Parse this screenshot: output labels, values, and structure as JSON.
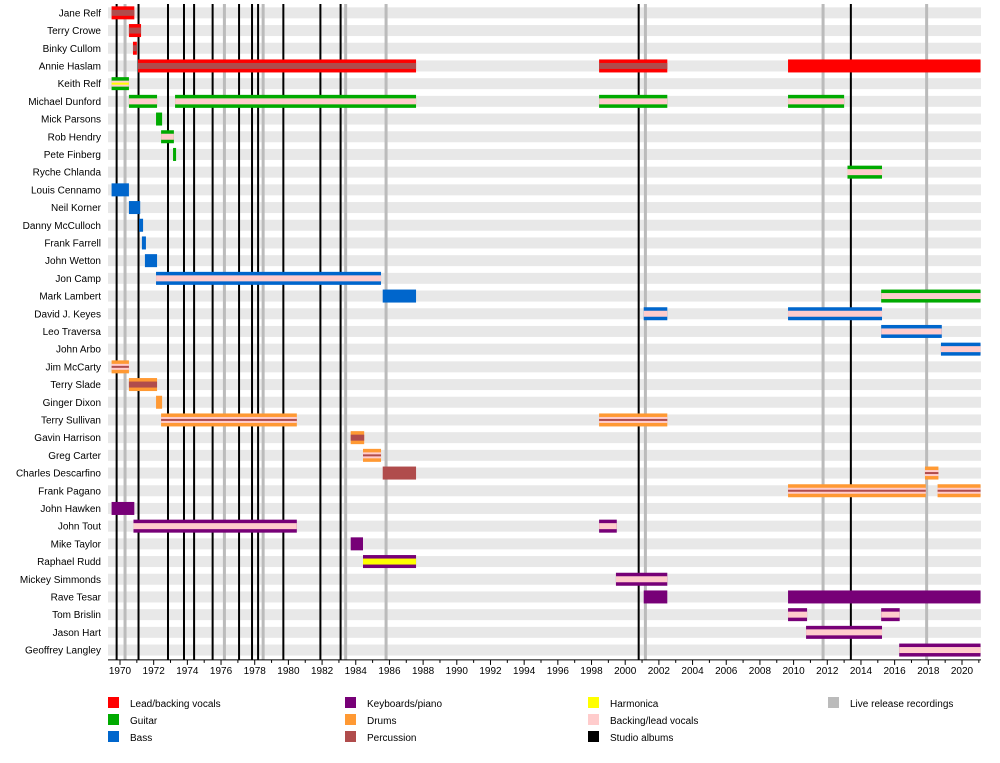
{
  "chart_data": {
    "type": "timeline",
    "xlim": [
      1969.3,
      2021.1
    ],
    "x_ticks": [
      1970,
      1972,
      1974,
      1976,
      1978,
      1980,
      1982,
      1984,
      1986,
      1988,
      1990,
      1992,
      1994,
      1996,
      1998,
      2000,
      2002,
      2004,
      2006,
      2008,
      2010,
      2012,
      2014,
      2016,
      2018,
      2020
    ],
    "colors": {
      "vocals": "#ff0000",
      "guitar": "#00aa00",
      "bass": "#0066cc",
      "keyboards": "#770077",
      "drums": "#ff9933",
      "percussion": "#b04c4c",
      "harmonica": "#ffff00",
      "backing": "#ffcccc",
      "studio": "#000000",
      "live": "#bbbbbb"
    },
    "legend": [
      {
        "key": "vocals",
        "label": "Lead/backing vocals"
      },
      {
        "key": "guitar",
        "label": "Guitar"
      },
      {
        "key": "bass",
        "label": "Bass"
      },
      {
        "key": "keyboards",
        "label": "Keyboards/piano"
      },
      {
        "key": "drums",
        "label": "Drums"
      },
      {
        "key": "percussion",
        "label": "Percussion"
      },
      {
        "key": "harmonica",
        "label": "Harmonica"
      },
      {
        "key": "backing",
        "label": "Backing/lead vocals"
      },
      {
        "key": "studio",
        "label": "Studio albums"
      },
      {
        "key": "live",
        "label": "Live release recordings"
      }
    ],
    "studio_albums": [
      1969.8,
      1971.1,
      1972.85,
      1973.8,
      1974.4,
      1975.5,
      1977.07,
      1977.84,
      1978.2,
      1979.7,
      1981.9,
      1983.1,
      2000.8,
      2013.4
    ],
    "live_releases": [
      1970.3,
      1976.2,
      1978.5,
      1983.4,
      1985.8,
      2001.2,
      2011.75,
      2017.9
    ],
    "members": [
      {
        "name": "Jane Relf",
        "bars": [
          {
            "from": 1969.5,
            "to": 1970.85,
            "roles": [
              "vocals",
              "percussion"
            ]
          }
        ]
      },
      {
        "name": "Terry Crowe",
        "bars": [
          {
            "from": 1970.53,
            "to": 1971.25,
            "roles": [
              "vocals",
              "percussion"
            ]
          }
        ]
      },
      {
        "name": "Binky Cullom",
        "bars": [
          {
            "from": 1970.77,
            "to": 1971.0,
            "roles": [
              "vocals",
              "percussion"
            ]
          }
        ]
      },
      {
        "name": "Annie Haslam",
        "bars": [
          {
            "from": 1971.07,
            "to": 1987.58,
            "roles": [
              "vocals",
              "percussion"
            ]
          },
          {
            "from": 1998.45,
            "to": 2002.5,
            "roles": [
              "vocals",
              "percussion"
            ]
          },
          {
            "from": 2009.67,
            "to": 2021.1,
            "roles": [
              "vocals"
            ]
          }
        ]
      },
      {
        "name": "Keith Relf",
        "bars": [
          {
            "from": 1969.5,
            "to": 1970.53,
            "roles": [
              "guitar",
              "backing",
              "harmonica"
            ]
          }
        ]
      },
      {
        "name": "Michael Dunford",
        "bars": [
          {
            "from": 1970.53,
            "to": 1972.2,
            "roles": [
              "guitar",
              "backing"
            ]
          },
          {
            "from": 1973.27,
            "to": 1987.58,
            "roles": [
              "guitar",
              "backing"
            ]
          },
          {
            "from": 1998.45,
            "to": 2002.5,
            "roles": [
              "guitar",
              "backing"
            ]
          },
          {
            "from": 2009.67,
            "to": 2013.0,
            "roles": [
              "guitar",
              "backing"
            ]
          }
        ]
      },
      {
        "name": "Mick Parsons",
        "bars": [
          {
            "from": 1972.14,
            "to": 1972.5,
            "roles": [
              "guitar"
            ]
          }
        ]
      },
      {
        "name": "Rob Hendry",
        "bars": [
          {
            "from": 1972.44,
            "to": 1973.2,
            "roles": [
              "guitar",
              "backing"
            ]
          }
        ]
      },
      {
        "name": "Pete Finberg",
        "bars": [
          {
            "from": 1973.15,
            "to": 1973.33,
            "roles": [
              "guitar"
            ]
          }
        ]
      },
      {
        "name": "Ryche Chlanda",
        "bars": [
          {
            "from": 2013.2,
            "to": 2015.25,
            "roles": [
              "guitar",
              "backing"
            ]
          }
        ]
      },
      {
        "name": "Louis Cennamo",
        "bars": [
          {
            "from": 1969.5,
            "to": 1970.53,
            "roles": [
              "bass"
            ]
          }
        ]
      },
      {
        "name": "Neil Korner",
        "bars": [
          {
            "from": 1970.53,
            "to": 1971.2,
            "roles": [
              "bass"
            ]
          }
        ]
      },
      {
        "name": "Danny McCulloch",
        "bars": [
          {
            "from": 1971.13,
            "to": 1971.37,
            "roles": [
              "bass"
            ]
          }
        ]
      },
      {
        "name": "Frank Farrell",
        "bars": [
          {
            "from": 1971.3,
            "to": 1971.54,
            "roles": [
              "bass"
            ]
          }
        ]
      },
      {
        "name": "John Wetton",
        "bars": [
          {
            "from": 1971.48,
            "to": 1972.2,
            "roles": [
              "bass"
            ]
          }
        ]
      },
      {
        "name": "Jon Camp",
        "bars": [
          {
            "from": 1972.14,
            "to": 1985.5,
            "roles": [
              "bass",
              "backing"
            ]
          }
        ]
      },
      {
        "name": "Mark Lambert",
        "bars": [
          {
            "from": 1985.6,
            "to": 1987.58,
            "roles": [
              "bass"
            ]
          },
          {
            "from": 2015.2,
            "to": 2021.1,
            "roles": [
              "guitar",
              "backing"
            ]
          }
        ]
      },
      {
        "name": "David J. Keyes",
        "bars": [
          {
            "from": 2001.1,
            "to": 2002.5,
            "roles": [
              "bass",
              "backing"
            ]
          },
          {
            "from": 2009.67,
            "to": 2015.25,
            "roles": [
              "bass",
              "backing"
            ]
          }
        ]
      },
      {
        "name": "Leo Traversa",
        "bars": [
          {
            "from": 2015.2,
            "to": 2018.8,
            "roles": [
              "bass",
              "backing"
            ]
          }
        ]
      },
      {
        "name": "John Arbo",
        "bars": [
          {
            "from": 2018.75,
            "to": 2021.1,
            "roles": [
              "bass",
              "backing"
            ]
          }
        ]
      },
      {
        "name": "Jim McCarty",
        "bars": [
          {
            "from": 1969.5,
            "to": 1970.53,
            "roles": [
              "drums",
              "backing",
              "percussion"
            ]
          }
        ]
      },
      {
        "name": "Terry Slade",
        "bars": [
          {
            "from": 1970.53,
            "to": 1972.2,
            "roles": [
              "drums",
              "percussion"
            ]
          }
        ]
      },
      {
        "name": "Ginger Dixon",
        "bars": [
          {
            "from": 1972.14,
            "to": 1972.5,
            "roles": [
              "drums"
            ]
          }
        ]
      },
      {
        "name": "Terry Sullivan",
        "bars": [
          {
            "from": 1972.44,
            "to": 1980.5,
            "roles": [
              "drums",
              "backing",
              "percussion"
            ]
          },
          {
            "from": 1998.45,
            "to": 2002.5,
            "roles": [
              "drums",
              "backing",
              "percussion"
            ]
          }
        ]
      },
      {
        "name": "Gavin Harrison",
        "bars": [
          {
            "from": 1983.7,
            "to": 1984.5,
            "roles": [
              "drums",
              "percussion"
            ]
          }
        ]
      },
      {
        "name": "Greg Carter",
        "bars": [
          {
            "from": 1984.43,
            "to": 1985.5,
            "roles": [
              "drums",
              "backing",
              "percussion"
            ]
          }
        ]
      },
      {
        "name": "Charles Descarfino",
        "bars": [
          {
            "from": 1985.6,
            "to": 1987.58,
            "roles": [
              "percussion"
            ]
          },
          {
            "from": 2017.8,
            "to": 2018.6,
            "roles": [
              "drums",
              "backing",
              "percussion"
            ]
          }
        ]
      },
      {
        "name": "Frank Pagano",
        "bars": [
          {
            "from": 2009.67,
            "to": 2017.85,
            "roles": [
              "drums",
              "backing",
              "percussion"
            ]
          },
          {
            "from": 2018.55,
            "to": 2021.1,
            "roles": [
              "drums",
              "backing",
              "percussion"
            ]
          }
        ]
      },
      {
        "name": "John Hawken",
        "bars": [
          {
            "from": 1969.5,
            "to": 1970.85,
            "roles": [
              "keyboards"
            ]
          }
        ]
      },
      {
        "name": "John Tout",
        "bars": [
          {
            "from": 1970.8,
            "to": 1980.5,
            "roles": [
              "keyboards",
              "backing"
            ]
          },
          {
            "from": 1998.45,
            "to": 1999.5,
            "roles": [
              "keyboards",
              "backing"
            ]
          }
        ]
      },
      {
        "name": "Mike Taylor",
        "bars": [
          {
            "from": 1983.7,
            "to": 1984.43,
            "roles": [
              "keyboards"
            ]
          }
        ]
      },
      {
        "name": "Raphael Rudd",
        "bars": [
          {
            "from": 1984.43,
            "to": 1987.58,
            "roles": [
              "keyboards",
              "harmonica"
            ]
          }
        ]
      },
      {
        "name": "Mickey Simmonds",
        "bars": [
          {
            "from": 1999.45,
            "to": 2002.5,
            "roles": [
              "keyboards",
              "backing"
            ]
          }
        ]
      },
      {
        "name": "Rave Tesar",
        "bars": [
          {
            "from": 2001.1,
            "to": 2002.5,
            "roles": [
              "keyboards"
            ]
          },
          {
            "from": 2009.67,
            "to": 2021.1,
            "roles": [
              "keyboards"
            ]
          }
        ]
      },
      {
        "name": "Tom Brislin",
        "bars": [
          {
            "from": 2009.67,
            "to": 2010.8,
            "roles": [
              "keyboards",
              "backing"
            ]
          },
          {
            "from": 2015.2,
            "to": 2016.3,
            "roles": [
              "keyboards",
              "backing"
            ]
          }
        ]
      },
      {
        "name": "Jason Hart",
        "bars": [
          {
            "from": 2010.74,
            "to": 2015.25,
            "roles": [
              "keyboards",
              "backing"
            ]
          }
        ]
      },
      {
        "name": "Geoffrey Langley",
        "bars": [
          {
            "from": 2016.27,
            "to": 2021.1,
            "roles": [
              "keyboards",
              "backing"
            ]
          }
        ]
      }
    ]
  }
}
